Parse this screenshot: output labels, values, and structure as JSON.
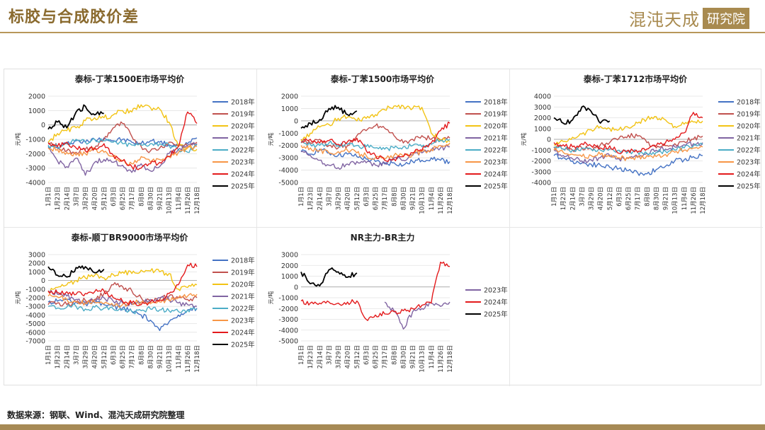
{
  "page": {
    "title": "标胶与合成胶价差",
    "logo_text": "混沌天成",
    "logo_box": "研究院",
    "source": "数据来源：钢联、Wind、混沌天成研究院整理"
  },
  "colors": {
    "2018年": "#4472c4",
    "2019年": "#c0504d",
    "2020年": "#f2c314",
    "2021年": "#8064a2",
    "2022年": "#4bacc6",
    "2023年": "#f79646",
    "2024年": "#e31a1c",
    "2025年": "#000000",
    "2023年_nr": "#8064a2"
  },
  "x_ticks": [
    "1月1日",
    "1月23日",
    "2月14日",
    "3月7日",
    "3月29日",
    "4月20日",
    "5月12日",
    "6月3日",
    "6月25日",
    "7月17日",
    "8月8日",
    "8月30日",
    "9月21日",
    "10月13日",
    "11月4日",
    "11月26日",
    "12月18日"
  ],
  "chart_data": [
    {
      "type": "line",
      "title": "泰标-丁苯1500E市场平均价",
      "ylabel": "元/吨",
      "ylim": [
        -4000,
        2000
      ],
      "yticks": [
        2000,
        1000,
        0,
        -1000,
        -2000,
        -3000,
        -4000
      ],
      "series": [
        {
          "name": "2018年",
          "values": [
            -1500,
            -1600,
            -1300,
            -1100,
            -1200,
            -1000,
            -900,
            -1100,
            -1000,
            -1200,
            -1300,
            -1100,
            -1200,
            -1400,
            -1500,
            -1300,
            -900
          ]
        },
        {
          "name": "2019年",
          "values": [
            -1200,
            -1500,
            -1800,
            -1900,
            -1700,
            -1600,
            -1000,
            -200,
            100,
            -800,
            -1500,
            -1800,
            -1600,
            -1200,
            -1400,
            -1500,
            -1200
          ]
        },
        {
          "name": "2020年",
          "values": [
            -1200,
            -600,
            -400,
            -200,
            300,
            500,
            500,
            700,
            1000,
            900,
            1400,
            1200,
            1100,
            200,
            -1500,
            -1600,
            -1700
          ]
        },
        {
          "name": "2021年",
          "values": [
            -1600,
            -2500,
            -2900,
            -2300,
            -3500,
            -2600,
            -2400,
            -2600,
            -2800,
            -3300,
            -2700,
            -3200,
            -2900,
            -2000,
            -1700,
            -1400,
            -1300
          ]
        },
        {
          "name": "2022年",
          "values": [
            -1400,
            -1500,
            -1300,
            -1000,
            -1200,
            -1000,
            -1100,
            -1200,
            -1300,
            -1400,
            -1400,
            -1300,
            -1300,
            -1400,
            -1700,
            -1900,
            -1400
          ]
        },
        {
          "name": "2023年",
          "values": [
            -1600,
            -1700,
            -1900,
            -2100,
            -2000,
            -1700,
            -1900,
            -2200,
            -2500,
            -2700,
            -2200,
            -2600,
            -2400,
            -2200,
            -1900,
            -1600,
            -1500
          ]
        },
        {
          "name": "2024年",
          "values": [
            -1300,
            -1500,
            -1200,
            -1600,
            -1800,
            -1600,
            -1300,
            -2100,
            -2500,
            -2900,
            -3000,
            -2700,
            -2600,
            -2200,
            -1500,
            900,
            100
          ]
        },
        {
          "name": "2025年",
          "values": [
            -300,
            200,
            -200,
            900,
            1300,
            700,
            800
          ]
        }
      ]
    },
    {
      "type": "line",
      "title": "泰标-丁苯1500市场平均价",
      "ylabel": "元/吨",
      "ylim": [
        -5000,
        2000
      ],
      "yticks": [
        2000,
        1000,
        0,
        -1000,
        -2000,
        -3000,
        -4000,
        -5000
      ],
      "series": [
        {
          "name": "2018年",
          "values": [
            -2500,
            -2700,
            -2300,
            -2600,
            -2800,
            -2700,
            -2900,
            -3100,
            -3300,
            -3500,
            -3400,
            -3600,
            -3300,
            -3200,
            -3000,
            -3200,
            -3300
          ]
        },
        {
          "name": "2019年",
          "values": [
            -1500,
            -1800,
            -1500,
            -2000,
            -2200,
            -2000,
            -1200,
            -800,
            -400,
            -600,
            -1200,
            -1800,
            -1500,
            -1200,
            -1500,
            -1600,
            -1400
          ]
        },
        {
          "name": "2020年",
          "values": [
            -1600,
            -1000,
            -500,
            -300,
            200,
            300,
            0,
            200,
            500,
            900,
            1200,
            1200,
            1000,
            1100,
            -1000,
            -1500,
            -1700
          ]
        },
        {
          "name": "2021年",
          "values": [
            -2500,
            -2800,
            -3200,
            -3600,
            -3800,
            -3500,
            -3300,
            -3400,
            -3600,
            -3400,
            -3000,
            -3200,
            -2800,
            -2600,
            -2400,
            -2200,
            -2100
          ]
        },
        {
          "name": "2022年",
          "values": [
            -1800,
            -1900,
            -2000,
            -1800,
            -2000,
            -1900,
            -2000,
            -2100,
            -2200,
            -2300,
            -2200,
            -2100,
            -2000,
            -2100,
            -1900,
            -1600,
            -1500
          ]
        },
        {
          "name": "2023年",
          "values": [
            -2000,
            -2200,
            -2400,
            -2600,
            -2500,
            -2400,
            -2600,
            -2800,
            -3000,
            -3100,
            -2800,
            -2900,
            -2700,
            -2500,
            -2300,
            -2000,
            -1800
          ]
        },
        {
          "name": "2024年",
          "values": [
            -1700,
            -1500,
            -1800,
            -1600,
            -1900,
            -1700,
            -1400,
            -2400,
            -2800,
            -3200,
            -3100,
            -2900,
            -2600,
            -2400,
            -1800,
            -800,
            -200
          ]
        },
        {
          "name": "2025年",
          "values": [
            -600,
            -200,
            100,
            1000,
            1100,
            500,
            800
          ]
        }
      ]
    },
    {
      "type": "line",
      "title": "泰标-丁苯1712市场平均价",
      "ylabel": "元/吨",
      "ylim": [
        -4000,
        4000
      ],
      "yticks": [
        4000,
        3000,
        2000,
        1000,
        0,
        -1000,
        -2000,
        -3000,
        -4000
      ],
      "series": [
        {
          "name": "2018年",
          "values": [
            -1500,
            -1700,
            -2000,
            -2200,
            -2300,
            -2400,
            -2600,
            -2700,
            -2900,
            -3100,
            -3200,
            -2800,
            -2500,
            -2000,
            -1900,
            -1600,
            -1500
          ]
        },
        {
          "name": "2019年",
          "values": [
            -700,
            -900,
            -1000,
            -800,
            -900,
            -500,
            -300,
            100,
            400,
            300,
            -300,
            -800,
            -600,
            -400,
            -200,
            0,
            300
          ]
        },
        {
          "name": "2020年",
          "values": [
            -500,
            -200,
            200,
            500,
            900,
            1200,
            1000,
            900,
            1100,
            1500,
            1900,
            2100,
            1800,
            1200,
            1400,
            1600,
            1700
          ]
        },
        {
          "name": "2021年",
          "values": [
            -1000,
            -1500,
            -1800,
            -2000,
            -1900,
            -1700,
            -1500,
            -1800,
            -1700,
            -1600,
            -1300,
            -1000,
            -900,
            -700,
            -500,
            -400,
            -300
          ]
        },
        {
          "name": "2022年",
          "values": [
            -800,
            -900,
            -1000,
            -800,
            -900,
            -1000,
            -900,
            -1000,
            -1100,
            -1200,
            -1300,
            -1200,
            -1100,
            -1000,
            -800,
            -600,
            -500
          ]
        },
        {
          "name": "2023年",
          "values": [
            -1000,
            -1200,
            -1400,
            -1600,
            -1500,
            -1400,
            -1600,
            -1700,
            -1800,
            -1700,
            -1500,
            -1600,
            -1400,
            -1200,
            -1000,
            -800,
            -700
          ]
        },
        {
          "name": "2024年",
          "values": [
            -300,
            -500,
            -700,
            -400,
            -600,
            -800,
            -600,
            -1300,
            -1000,
            -1200,
            -900,
            -600,
            -300,
            0,
            600,
            2500,
            2000
          ]
        },
        {
          "name": "2025年",
          "values": [
            2000,
            1500,
            1800,
            3000,
            2600,
            1500,
            1700
          ]
        }
      ]
    },
    {
      "type": "line",
      "title": "泰标-顺丁BR9000市场平均价",
      "ylabel": "元/吨",
      "ylim": [
        -7000,
        3000
      ],
      "yticks": [
        3000,
        2000,
        1000,
        0,
        -1000,
        -2000,
        -3000,
        -4000,
        -5000,
        -6000,
        -7000
      ],
      "series": [
        {
          "name": "2018年",
          "values": [
            -2500,
            -2400,
            -2200,
            -2500,
            -2700,
            -2600,
            -2800,
            -3000,
            -3200,
            -3600,
            -4000,
            -4600,
            -5800,
            -4800,
            -4000,
            -3400,
            -3200
          ]
        },
        {
          "name": "2019年",
          "values": [
            -2800,
            -2600,
            -2800,
            -2500,
            -2300,
            -2200,
            -1500,
            -500,
            -700,
            -1200,
            -2000,
            -2500,
            -2200,
            -1800,
            -2000,
            -2200,
            -2000
          ]
        },
        {
          "name": "2020年",
          "values": [
            -1300,
            -800,
            -500,
            0,
            300,
            600,
            300,
            700,
            1000,
            800,
            1200,
            1100,
            1000,
            800,
            -1000,
            -800,
            -500
          ]
        },
        {
          "name": "2021年",
          "values": [
            -1200,
            -1600,
            -1800,
            -2200,
            -2500,
            -2300,
            -2000,
            -2400,
            -2600,
            -2800,
            -2500,
            -2200,
            -2000,
            -2200,
            -2600,
            -2800,
            -3000
          ]
        },
        {
          "name": "2022年",
          "values": [
            -3000,
            -3200,
            -3100,
            -3000,
            -3300,
            -3100,
            -3200,
            -3300,
            -3400,
            -3600,
            -3500,
            -3300,
            -3400,
            -3500,
            -3600,
            -3400,
            -3300
          ]
        },
        {
          "name": "2023年",
          "values": [
            -1800,
            -1900,
            -2200,
            -2500,
            -2600,
            -2500,
            -2700,
            -2900,
            -2800,
            -2600,
            -2500,
            -2700,
            -2500,
            -2300,
            -2000,
            -1800,
            -1600
          ]
        },
        {
          "name": "2024年",
          "values": [
            -1200,
            -1400,
            -1300,
            -1600,
            -1500,
            -1300,
            -1200,
            -2000,
            -2400,
            -2600,
            -2800,
            -2500,
            -2300,
            -1500,
            -500,
            1800,
            1600
          ]
        },
        {
          "name": "2025年",
          "values": [
            1600,
            600,
            400,
            1500,
            1600,
            900,
            1300
          ]
        }
      ]
    },
    {
      "type": "line",
      "title": "NR主力-BR主力",
      "ylabel": "元/吨",
      "ylim": [
        -5000,
        3000
      ],
      "yticks": [
        3000,
        2000,
        1000,
        0,
        -1000,
        -2000,
        -3000,
        -4000,
        -5000
      ],
      "series": [
        {
          "name": "2023年",
          "values": [
            null,
            null,
            null,
            null,
            null,
            null,
            null,
            null,
            null,
            -1400,
            -2200,
            -3900,
            -2300,
            -2000,
            -1500,
            -1800,
            -1400
          ]
        },
        {
          "name": "2024年",
          "values": [
            -1300,
            -1500,
            -1500,
            -1400,
            -1500,
            -1400,
            -1300,
            -3000,
            -2600,
            -2500,
            -2300,
            -2200,
            -2000,
            -1700,
            -1500,
            2300,
            1900
          ]
        },
        {
          "name": "2025年",
          "values": [
            1400,
            300,
            100,
            1600,
            1400,
            900,
            1300
          ]
        }
      ]
    }
  ]
}
